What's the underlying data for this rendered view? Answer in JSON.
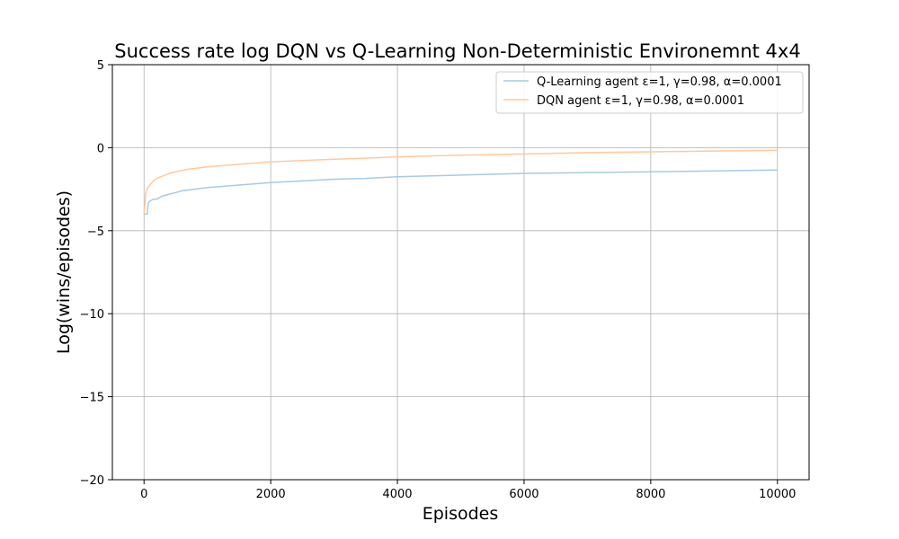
{
  "chart_data": {
    "type": "line",
    "title": "Success rate log DQN vs Q-Learning Non-Deterministic Environemnt 4x4",
    "xlabel": "Episodes",
    "ylabel": "Log(wins/episodes)",
    "xlim": [
      -500,
      10500
    ],
    "ylim": [
      -20,
      5
    ],
    "xticks": [
      0,
      2000,
      4000,
      6000,
      8000,
      10000
    ],
    "yticks": [
      -20,
      -15,
      -10,
      -5,
      0,
      5
    ],
    "xtick_labels": [
      "0",
      "2000",
      "4000",
      "6000",
      "8000",
      "10000"
    ],
    "ytick_labels": [
      "−20",
      "−15",
      "−10",
      "−5",
      "0",
      "5"
    ],
    "grid": true,
    "legend_position": "top-right",
    "series": [
      {
        "name": "Q-Learning agent ε=1, γ=0.98, α=0.0001",
        "color": "#a6cbe3",
        "x": [
          0,
          50,
          60,
          70,
          100,
          150,
          200,
          250,
          300,
          400,
          500,
          600,
          700,
          800,
          1000,
          1200,
          1500,
          2000,
          2500,
          3000,
          3500,
          4000,
          5000,
          6000,
          7000,
          8000,
          9000,
          10000
        ],
        "y": [
          -4.0,
          -4.0,
          -3.5,
          -3.3,
          -3.2,
          -3.1,
          -3.1,
          -3.0,
          -2.9,
          -2.8,
          -2.7,
          -2.6,
          -2.55,
          -2.5,
          -2.4,
          -2.35,
          -2.25,
          -2.1,
          -2.0,
          -1.9,
          -1.85,
          -1.75,
          -1.65,
          -1.55,
          -1.5,
          -1.45,
          -1.4,
          -1.35
        ]
      },
      {
        "name": "DQN agent ε=1, γ=0.98, α=0.0001",
        "color": "#ffc99e",
        "x": [
          0,
          30,
          60,
          100,
          150,
          200,
          300,
          400,
          500,
          700,
          1000,
          1500,
          2000,
          3000,
          4000,
          5000,
          6000,
          7000,
          8000,
          9000,
          10000
        ],
        "y": [
          -4.0,
          -2.7,
          -2.4,
          -2.2,
          -2.0,
          -1.85,
          -1.7,
          -1.55,
          -1.45,
          -1.3,
          -1.15,
          -1.0,
          -0.85,
          -0.7,
          -0.55,
          -0.45,
          -0.38,
          -0.3,
          -0.25,
          -0.2,
          -0.15
        ]
      }
    ]
  }
}
